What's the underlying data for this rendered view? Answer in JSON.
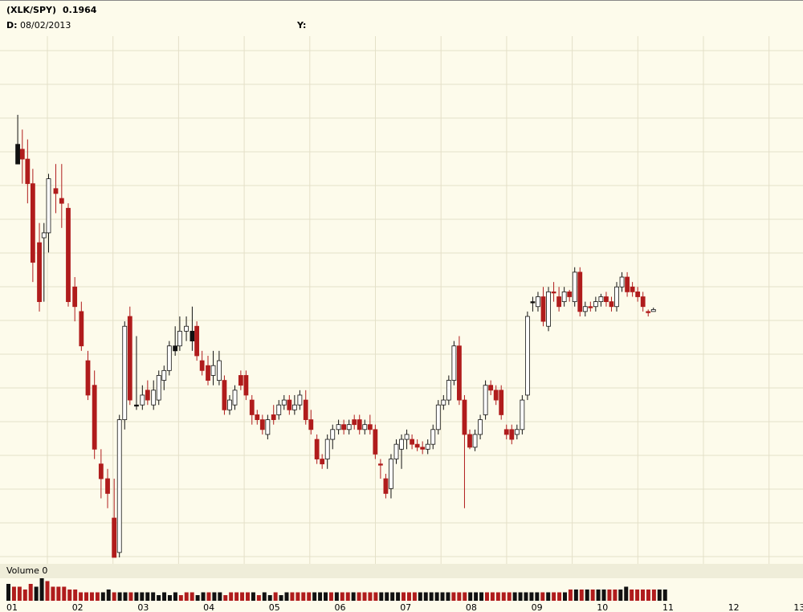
{
  "header": {
    "symbol": "(XLK/SPY)",
    "value": "0.1964",
    "date_label": "D:",
    "date_value": "08/02/2013",
    "y_label": "Y:"
  },
  "volume_panel": {
    "label": "Volume 0"
  },
  "colors": {
    "background": "#fdfbeb",
    "grid": "#e4e0c8",
    "up": "#ffffff",
    "down": "#b01c1c",
    "neutral": "#111111",
    "volume_bg": "#efedd9"
  },
  "chart_data": {
    "type": "candlestick",
    "x_tick_labels": [
      "01",
      "02",
      "03",
      "04",
      "05",
      "06",
      "07",
      "08",
      "09",
      "10",
      "11",
      "12",
      "13"
    ],
    "ylim": [
      0.18,
      0.233
    ],
    "grid": true,
    "candles": [
      {
        "x": 1.05,
        "o": 0.222,
        "h": 0.225,
        "l": 0.22,
        "c": 0.22,
        "k": "n"
      },
      {
        "x": 1.12,
        "o": 0.2215,
        "h": 0.2235,
        "l": 0.218,
        "c": 0.2205,
        "k": "d"
      },
      {
        "x": 1.2,
        "o": 0.2205,
        "h": 0.2225,
        "l": 0.216,
        "c": 0.218,
        "k": "d"
      },
      {
        "x": 1.28,
        "o": 0.218,
        "h": 0.2195,
        "l": 0.208,
        "c": 0.21,
        "k": "d"
      },
      {
        "x": 1.38,
        "o": 0.212,
        "h": 0.214,
        "l": 0.205,
        "c": 0.206,
        "k": "d"
      },
      {
        "x": 1.45,
        "o": 0.213,
        "h": 0.214,
        "l": 0.206,
        "c": 0.2125,
        "k": "u"
      },
      {
        "x": 1.52,
        "o": 0.213,
        "h": 0.219,
        "l": 0.211,
        "c": 0.2185,
        "k": "u"
      },
      {
        "x": 1.63,
        "o": 0.2175,
        "h": 0.22,
        "l": 0.215,
        "c": 0.217,
        "k": "d"
      },
      {
        "x": 1.72,
        "o": 0.2165,
        "h": 0.22,
        "l": 0.2135,
        "c": 0.216,
        "k": "d"
      },
      {
        "x": 1.82,
        "o": 0.2155,
        "h": 0.216,
        "l": 0.2055,
        "c": 0.206,
        "k": "d"
      },
      {
        "x": 1.92,
        "o": 0.2075,
        "h": 0.2085,
        "l": 0.204,
        "c": 0.2055,
        "k": "d"
      },
      {
        "x": 2.02,
        "o": 0.205,
        "h": 0.206,
        "l": 0.201,
        "c": 0.2015,
        "k": "d"
      },
      {
        "x": 2.12,
        "o": 0.2,
        "h": 0.201,
        "l": 0.196,
        "c": 0.1965,
        "k": "d"
      },
      {
        "x": 2.22,
        "o": 0.1975,
        "h": 0.199,
        "l": 0.19,
        "c": 0.191,
        "k": "d"
      },
      {
        "x": 2.32,
        "o": 0.1895,
        "h": 0.191,
        "l": 0.186,
        "c": 0.188,
        "k": "d"
      },
      {
        "x": 2.42,
        "o": 0.188,
        "h": 0.189,
        "l": 0.185,
        "c": 0.1865,
        "k": "d"
      },
      {
        "x": 2.52,
        "o": 0.184,
        "h": 0.188,
        "l": 0.18,
        "c": 0.18,
        "k": "d"
      },
      {
        "x": 2.6,
        "o": 0.1805,
        "h": 0.1945,
        "l": 0.18,
        "c": 0.194,
        "k": "u"
      },
      {
        "x": 2.68,
        "o": 0.194,
        "h": 0.204,
        "l": 0.193,
        "c": 0.2035,
        "k": "u"
      },
      {
        "x": 2.76,
        "o": 0.2045,
        "h": 0.2055,
        "l": 0.1955,
        "c": 0.196,
        "k": "d"
      },
      {
        "x": 2.86,
        "o": 0.1955,
        "h": 0.2025,
        "l": 0.195,
        "c": 0.1955,
        "k": "n"
      },
      {
        "x": 2.95,
        "o": 0.1955,
        "h": 0.1975,
        "l": 0.195,
        "c": 0.1965,
        "k": "u"
      },
      {
        "x": 3.03,
        "o": 0.197,
        "h": 0.198,
        "l": 0.1955,
        "c": 0.196,
        "k": "d"
      },
      {
        "x": 3.12,
        "o": 0.1955,
        "h": 0.198,
        "l": 0.195,
        "c": 0.197,
        "k": "u"
      },
      {
        "x": 3.2,
        "o": 0.196,
        "h": 0.199,
        "l": 0.1955,
        "c": 0.1985,
        "k": "u"
      },
      {
        "x": 3.28,
        "o": 0.198,
        "h": 0.1995,
        "l": 0.197,
        "c": 0.199,
        "k": "u"
      },
      {
        "x": 3.36,
        "o": 0.199,
        "h": 0.202,
        "l": 0.1985,
        "c": 0.2015,
        "k": "u"
      },
      {
        "x": 3.45,
        "o": 0.201,
        "h": 0.2035,
        "l": 0.2005,
        "c": 0.2015,
        "k": "n"
      },
      {
        "x": 3.52,
        "o": 0.2015,
        "h": 0.2045,
        "l": 0.201,
        "c": 0.203,
        "k": "u"
      },
      {
        "x": 3.62,
        "o": 0.203,
        "h": 0.2045,
        "l": 0.202,
        "c": 0.2035,
        "k": "u"
      },
      {
        "x": 3.71,
        "o": 0.203,
        "h": 0.2055,
        "l": 0.201,
        "c": 0.202,
        "k": "n"
      },
      {
        "x": 3.78,
        "o": 0.2035,
        "h": 0.204,
        "l": 0.2,
        "c": 0.2005,
        "k": "d"
      },
      {
        "x": 3.86,
        "o": 0.2,
        "h": 0.201,
        "l": 0.1985,
        "c": 0.199,
        "k": "d"
      },
      {
        "x": 3.95,
        "o": 0.1995,
        "h": 0.2005,
        "l": 0.1975,
        "c": 0.198,
        "k": "d"
      },
      {
        "x": 4.03,
        "o": 0.1985,
        "h": 0.201,
        "l": 0.1975,
        "c": 0.1995,
        "k": "u"
      },
      {
        "x": 4.12,
        "o": 0.2,
        "h": 0.201,
        "l": 0.1975,
        "c": 0.198,
        "k": "u"
      },
      {
        "x": 4.2,
        "o": 0.198,
        "h": 0.1985,
        "l": 0.1945,
        "c": 0.195,
        "k": "d"
      },
      {
        "x": 4.28,
        "o": 0.195,
        "h": 0.1965,
        "l": 0.1945,
        "c": 0.196,
        "k": "u"
      },
      {
        "x": 4.36,
        "o": 0.1955,
        "h": 0.1975,
        "l": 0.195,
        "c": 0.197,
        "k": "u"
      },
      {
        "x": 4.45,
        "o": 0.1975,
        "h": 0.199,
        "l": 0.197,
        "c": 0.1985,
        "k": "d"
      },
      {
        "x": 4.53,
        "o": 0.1985,
        "h": 0.199,
        "l": 0.196,
        "c": 0.1965,
        "k": "d"
      },
      {
        "x": 4.62,
        "o": 0.196,
        "h": 0.1965,
        "l": 0.1935,
        "c": 0.1945,
        "k": "d"
      },
      {
        "x": 4.7,
        "o": 0.1945,
        "h": 0.195,
        "l": 0.1935,
        "c": 0.194,
        "k": "d"
      },
      {
        "x": 4.78,
        "o": 0.194,
        "h": 0.1945,
        "l": 0.1925,
        "c": 0.193,
        "k": "d"
      },
      {
        "x": 4.86,
        "o": 0.1925,
        "h": 0.1945,
        "l": 0.192,
        "c": 0.194,
        "k": "u"
      },
      {
        "x": 4.95,
        "o": 0.194,
        "h": 0.1955,
        "l": 0.1935,
        "c": 0.1945,
        "k": "d"
      },
      {
        "x": 5.03,
        "o": 0.1945,
        "h": 0.196,
        "l": 0.194,
        "c": 0.1955,
        "k": "u"
      },
      {
        "x": 5.11,
        "o": 0.1955,
        "h": 0.1965,
        "l": 0.195,
        "c": 0.196,
        "k": "u"
      },
      {
        "x": 5.19,
        "o": 0.196,
        "h": 0.1965,
        "l": 0.1945,
        "c": 0.195,
        "k": "d"
      },
      {
        "x": 5.27,
        "o": 0.195,
        "h": 0.1965,
        "l": 0.1945,
        "c": 0.1955,
        "k": "u"
      },
      {
        "x": 5.35,
        "o": 0.1955,
        "h": 0.197,
        "l": 0.195,
        "c": 0.1965,
        "k": "u"
      },
      {
        "x": 5.44,
        "o": 0.196,
        "h": 0.197,
        "l": 0.1935,
        "c": 0.194,
        "k": "d"
      },
      {
        "x": 5.52,
        "o": 0.194,
        "h": 0.195,
        "l": 0.1925,
        "c": 0.193,
        "k": "d"
      },
      {
        "x": 5.61,
        "o": 0.192,
        "h": 0.1925,
        "l": 0.1895,
        "c": 0.19,
        "k": "d"
      },
      {
        "x": 5.69,
        "o": 0.1895,
        "h": 0.1905,
        "l": 0.189,
        "c": 0.19,
        "k": "d"
      },
      {
        "x": 5.77,
        "o": 0.19,
        "h": 0.1925,
        "l": 0.189,
        "c": 0.192,
        "k": "u"
      },
      {
        "x": 5.85,
        "o": 0.192,
        "h": 0.1935,
        "l": 0.191,
        "c": 0.193,
        "k": "u"
      },
      {
        "x": 5.94,
        "o": 0.193,
        "h": 0.194,
        "l": 0.1925,
        "c": 0.1935,
        "k": "u"
      },
      {
        "x": 6.02,
        "o": 0.1935,
        "h": 0.194,
        "l": 0.1925,
        "c": 0.193,
        "k": "d"
      },
      {
        "x": 6.1,
        "o": 0.193,
        "h": 0.194,
        "l": 0.1925,
        "c": 0.1935,
        "k": "u"
      },
      {
        "x": 6.18,
        "o": 0.1935,
        "h": 0.1945,
        "l": 0.193,
        "c": 0.194,
        "k": "d"
      },
      {
        "x": 6.26,
        "o": 0.194,
        "h": 0.1945,
        "l": 0.1925,
        "c": 0.193,
        "k": "d"
      },
      {
        "x": 6.34,
        "o": 0.193,
        "h": 0.194,
        "l": 0.1925,
        "c": 0.1935,
        "k": "u"
      },
      {
        "x": 6.42,
        "o": 0.1935,
        "h": 0.1945,
        "l": 0.1925,
        "c": 0.193,
        "k": "d"
      },
      {
        "x": 6.5,
        "o": 0.193,
        "h": 0.1935,
        "l": 0.19,
        "c": 0.1905,
        "k": "d"
      },
      {
        "x": 6.58,
        "o": 0.1895,
        "h": 0.19,
        "l": 0.188,
        "c": 0.1895,
        "k": "d"
      },
      {
        "x": 6.66,
        "o": 0.188,
        "h": 0.1885,
        "l": 0.186,
        "c": 0.1865,
        "k": "d"
      },
      {
        "x": 6.74,
        "o": 0.187,
        "h": 0.1905,
        "l": 0.186,
        "c": 0.19,
        "k": "u"
      },
      {
        "x": 6.82,
        "o": 0.19,
        "h": 0.192,
        "l": 0.1895,
        "c": 0.1915,
        "k": "u"
      },
      {
        "x": 6.9,
        "o": 0.191,
        "h": 0.1925,
        "l": 0.189,
        "c": 0.192,
        "k": "u"
      },
      {
        "x": 6.98,
        "o": 0.192,
        "h": 0.193,
        "l": 0.191,
        "c": 0.1925,
        "k": "u"
      },
      {
        "x": 7.06,
        "o": 0.192,
        "h": 0.1925,
        "l": 0.191,
        "c": 0.1915,
        "k": "d"
      },
      {
        "x": 7.14,
        "o": 0.1915,
        "h": 0.192,
        "l": 0.1908,
        "c": 0.1912,
        "k": "d"
      },
      {
        "x": 7.22,
        "o": 0.1912,
        "h": 0.1918,
        "l": 0.1905,
        "c": 0.191,
        "k": "d"
      },
      {
        "x": 7.3,
        "o": 0.191,
        "h": 0.192,
        "l": 0.1905,
        "c": 0.1915,
        "k": "u"
      },
      {
        "x": 7.38,
        "o": 0.1915,
        "h": 0.1935,
        "l": 0.191,
        "c": 0.193,
        "k": "u"
      },
      {
        "x": 7.46,
        "o": 0.193,
        "h": 0.196,
        "l": 0.1925,
        "c": 0.1955,
        "k": "u"
      },
      {
        "x": 7.54,
        "o": 0.1955,
        "h": 0.1965,
        "l": 0.195,
        "c": 0.196,
        "k": "u"
      },
      {
        "x": 7.62,
        "o": 0.196,
        "h": 0.1985,
        "l": 0.1955,
        "c": 0.198,
        "k": "u"
      },
      {
        "x": 7.7,
        "o": 0.198,
        "h": 0.202,
        "l": 0.1975,
        "c": 0.2015,
        "k": "u"
      },
      {
        "x": 7.78,
        "o": 0.2015,
        "h": 0.2025,
        "l": 0.1955,
        "c": 0.196,
        "k": "d"
      },
      {
        "x": 7.86,
        "o": 0.196,
        "h": 0.1965,
        "l": 0.185,
        "c": 0.1925,
        "k": "d"
      },
      {
        "x": 7.94,
        "o": 0.1925,
        "h": 0.193,
        "l": 0.191,
        "c": 0.1912,
        "k": "d"
      },
      {
        "x": 8.02,
        "o": 0.1912,
        "h": 0.193,
        "l": 0.1908,
        "c": 0.1925,
        "k": "u"
      },
      {
        "x": 8.1,
        "o": 0.1925,
        "h": 0.1945,
        "l": 0.192,
        "c": 0.194,
        "k": "u"
      },
      {
        "x": 8.18,
        "o": 0.1945,
        "h": 0.198,
        "l": 0.194,
        "c": 0.1975,
        "k": "u"
      },
      {
        "x": 8.26,
        "o": 0.1975,
        "h": 0.198,
        "l": 0.1965,
        "c": 0.197,
        "k": "d"
      },
      {
        "x": 8.34,
        "o": 0.197,
        "h": 0.1975,
        "l": 0.1955,
        "c": 0.196,
        "k": "d"
      },
      {
        "x": 8.42,
        "o": 0.197,
        "h": 0.1975,
        "l": 0.194,
        "c": 0.1945,
        "k": "d"
      },
      {
        "x": 8.5,
        "o": 0.193,
        "h": 0.1935,
        "l": 0.192,
        "c": 0.1925,
        "k": "d"
      },
      {
        "x": 8.58,
        "o": 0.193,
        "h": 0.1935,
        "l": 0.1915,
        "c": 0.192,
        "k": "d"
      },
      {
        "x": 8.66,
        "o": 0.1925,
        "h": 0.1935,
        "l": 0.192,
        "c": 0.193,
        "k": "u"
      },
      {
        "x": 8.74,
        "o": 0.193,
        "h": 0.1965,
        "l": 0.1925,
        "c": 0.196,
        "k": "u"
      },
      {
        "x": 8.82,
        "o": 0.1965,
        "h": 0.205,
        "l": 0.196,
        "c": 0.2045,
        "k": "u"
      },
      {
        "x": 8.9,
        "o": 0.206,
        "h": 0.2065,
        "l": 0.205,
        "c": 0.206,
        "k": "n"
      },
      {
        "x": 8.98,
        "o": 0.2055,
        "h": 0.207,
        "l": 0.205,
        "c": 0.2065,
        "k": "u"
      },
      {
        "x": 9.06,
        "o": 0.2065,
        "h": 0.2075,
        "l": 0.2035,
        "c": 0.204,
        "k": "d"
      },
      {
        "x": 9.14,
        "o": 0.2035,
        "h": 0.2075,
        "l": 0.203,
        "c": 0.207,
        "k": "u"
      },
      {
        "x": 9.22,
        "o": 0.207,
        "h": 0.208,
        "l": 0.206,
        "c": 0.207,
        "k": "d"
      },
      {
        "x": 9.3,
        "o": 0.2065,
        "h": 0.2075,
        "l": 0.205,
        "c": 0.2055,
        "k": "d"
      },
      {
        "x": 9.38,
        "o": 0.206,
        "h": 0.2075,
        "l": 0.2055,
        "c": 0.207,
        "k": "u"
      },
      {
        "x": 9.46,
        "o": 0.207,
        "h": 0.2072,
        "l": 0.206,
        "c": 0.2065,
        "k": "d"
      },
      {
        "x": 9.54,
        "o": 0.206,
        "h": 0.2095,
        "l": 0.2055,
        "c": 0.209,
        "k": "u"
      },
      {
        "x": 9.62,
        "o": 0.209,
        "h": 0.2095,
        "l": 0.2045,
        "c": 0.205,
        "k": "d"
      },
      {
        "x": 9.7,
        "o": 0.205,
        "h": 0.206,
        "l": 0.2045,
        "c": 0.2055,
        "k": "u"
      },
      {
        "x": 9.78,
        "o": 0.2055,
        "h": 0.206,
        "l": 0.205,
        "c": 0.2055,
        "k": "d"
      },
      {
        "x": 9.86,
        "o": 0.2055,
        "h": 0.2065,
        "l": 0.205,
        "c": 0.206,
        "k": "u"
      },
      {
        "x": 9.94,
        "o": 0.206,
        "h": 0.2068,
        "l": 0.2055,
        "c": 0.2065,
        "k": "u"
      },
      {
        "x": 10.02,
        "o": 0.2065,
        "h": 0.207,
        "l": 0.2055,
        "c": 0.206,
        "k": "d"
      },
      {
        "x": 10.1,
        "o": 0.206,
        "h": 0.2065,
        "l": 0.205,
        "c": 0.2055,
        "k": "d"
      },
      {
        "x": 10.18,
        "o": 0.2055,
        "h": 0.208,
        "l": 0.205,
        "c": 0.2075,
        "k": "u"
      },
      {
        "x": 10.26,
        "o": 0.2075,
        "h": 0.209,
        "l": 0.207,
        "c": 0.2085,
        "k": "u"
      },
      {
        "x": 10.34,
        "o": 0.2085,
        "h": 0.209,
        "l": 0.2065,
        "c": 0.207,
        "k": "d"
      },
      {
        "x": 10.42,
        "o": 0.2075,
        "h": 0.208,
        "l": 0.2065,
        "c": 0.207,
        "k": "d"
      },
      {
        "x": 10.5,
        "o": 0.207,
        "h": 0.2075,
        "l": 0.206,
        "c": 0.2065,
        "k": "d"
      },
      {
        "x": 10.58,
        "o": 0.2065,
        "h": 0.207,
        "l": 0.205,
        "c": 0.2055,
        "k": "d"
      },
      {
        "x": 10.66,
        "o": 0.205,
        "h": 0.2052,
        "l": 0.2045,
        "c": 0.205,
        "k": "d"
      },
      {
        "x": 10.74,
        "o": 0.205,
        "h": 0.2054,
        "l": 0.205,
        "c": 0.2052,
        "k": "u"
      }
    ],
    "volume": [
      6,
      5,
      5,
      4,
      6,
      5,
      8,
      7,
      5,
      5,
      5,
      4,
      4,
      3,
      3,
      3,
      3,
      3,
      4,
      3,
      3,
      3,
      3,
      3,
      3,
      3,
      3,
      2,
      3,
      2,
      3,
      2,
      3,
      3,
      2,
      3,
      3,
      3,
      3,
      2,
      3,
      3,
      3,
      3,
      3,
      2,
      3,
      2,
      3,
      2,
      3,
      3,
      3,
      3,
      3,
      3,
      3,
      3,
      3,
      3,
      3,
      3,
      3,
      3,
      3,
      3,
      3,
      3,
      3,
      3,
      3,
      3,
      3,
      3,
      3,
      3,
      3,
      3,
      3,
      3,
      3,
      3,
      3,
      3,
      3,
      3,
      3,
      3,
      3,
      3,
      3,
      3,
      3,
      3,
      3,
      3,
      3,
      3,
      3,
      3,
      3,
      4,
      4,
      4,
      4,
      4,
      4,
      4,
      4,
      4,
      4,
      5,
      4,
      4,
      4,
      4,
      4,
      4,
      4
    ]
  }
}
